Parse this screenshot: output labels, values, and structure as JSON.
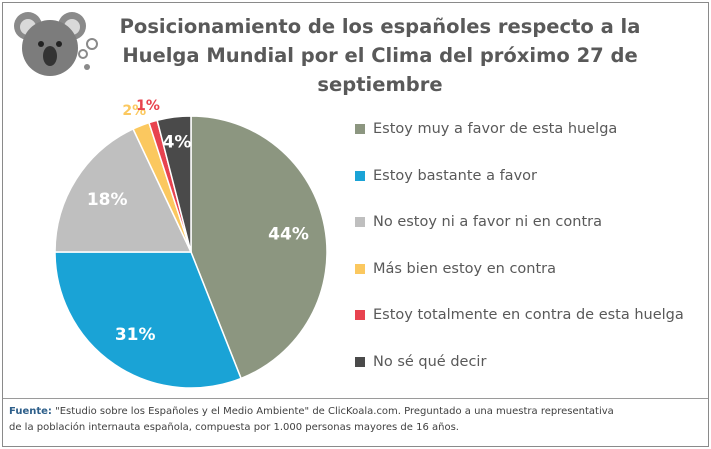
{
  "chart_data": {
    "type": "pie",
    "title": "Posicionamiento de los españoles respecto a la Huelga Mundial por el Clima del próximo 27 de septiembre",
    "title_lines": [
      "Posicionamiento de los españoles respecto a la",
      "Huelga Mundial por el Clima del próximo 27 de",
      "septiembre"
    ],
    "slices": [
      {
        "label": "Estoy muy a favor de esta huelga",
        "value": 44,
        "display": "44%",
        "color": "#8c9680"
      },
      {
        "label": "Estoy bastante a favor",
        "value": 31,
        "display": "31%",
        "color": "#1aa3d6"
      },
      {
        "label": "No estoy ni a favor ni en contra",
        "value": 18,
        "display": "18%",
        "color": "#bfbfbf"
      },
      {
        "label": "Más bien estoy en contra",
        "value": 2,
        "display": "2%",
        "color": "#fbc85f"
      },
      {
        "label": "Estoy totalmente en contra de esta huelga",
        "value": 1,
        "display": "1%",
        "color": "#e8434f"
      },
      {
        "label": "No sé qué decir",
        "value": 4,
        "display": "4%",
        "color": "#4a4a4a"
      }
    ],
    "legend_position": "right"
  },
  "footer": {
    "source_label": "Fuente:",
    "source_text": " \"Estudio sobre los Españoles y el Medio Ambiente\" de ClicKoala.com. Preguntado a una muestra representativa",
    "line2": "de la población internauta española, compuesta por 1.000 personas mayores de 16 años."
  },
  "colors": {
    "title": "#595959",
    "label_light": "#ffffff",
    "label_dark": "#595959"
  }
}
